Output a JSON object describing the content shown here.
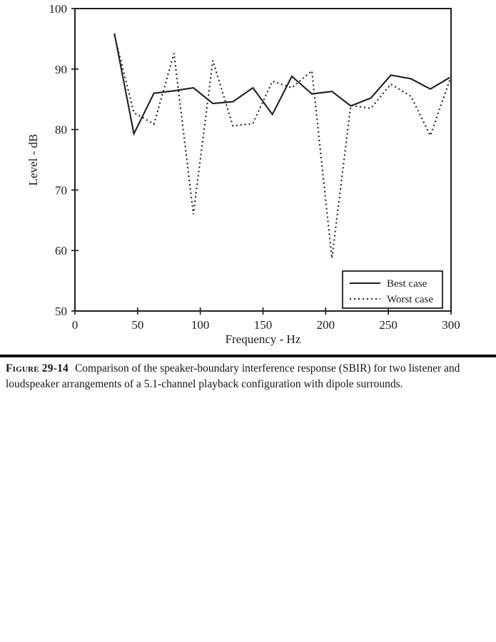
{
  "colors": {
    "ink": "#1f1f1f",
    "background": "#ffffff"
  },
  "figure": {
    "caption_label": "Figure 29-14",
    "caption_text": "Comparison of the speaker-boundary interference response (SBIR) for two listener and loudspeaker arrangements of a 5.1-channel playback configuration with dipole surrounds."
  },
  "chart_data": {
    "type": "line",
    "title": "",
    "xlabel": "Frequency - Hz",
    "ylabel": "Level - dB",
    "xlim": [
      0,
      300
    ],
    "ylim": [
      50,
      100
    ],
    "x_ticks": [
      0,
      50,
      100,
      150,
      200,
      250,
      300
    ],
    "y_ticks": [
      50,
      60,
      70,
      80,
      90,
      100
    ],
    "grid": false,
    "legend_position": "lower right",
    "x": [
      31.5,
      47,
      63,
      79,
      94.5,
      110,
      126,
      142,
      157.5,
      173,
      189,
      205,
      220,
      236,
      252,
      268,
      283.5,
      299
    ],
    "series": [
      {
        "name": "Best case",
        "style": "solid",
        "values": [
          95.9,
          79.3,
          86.0,
          86.4,
          86.9,
          84.3,
          84.6,
          86.9,
          82.5,
          88.8,
          85.9,
          86.3,
          83.9,
          85.2,
          89.0,
          88.4,
          86.7,
          88.6
        ]
      },
      {
        "name": "Worst case",
        "style": "dotted",
        "values": [
          95.6,
          82.8,
          80.9,
          92.6,
          66.0,
          91.4,
          80.6,
          81.0,
          88.0,
          86.9,
          89.7,
          58.7,
          84.0,
          83.5,
          87.5,
          85.5,
          79.0,
          88.2
        ]
      }
    ]
  }
}
